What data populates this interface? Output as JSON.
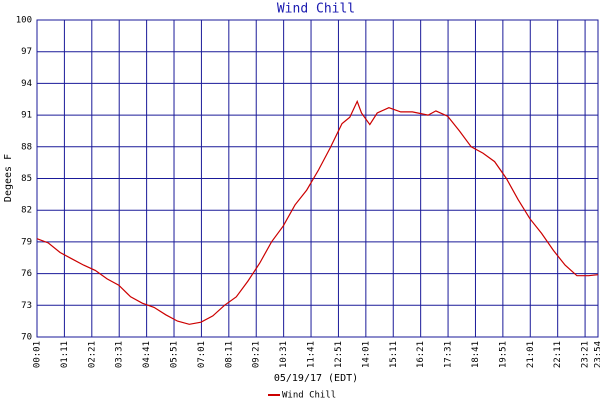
{
  "chart_data": {
    "type": "line",
    "title": "Wind Chill",
    "xlabel": "05/19/17 (EDT)",
    "ylabel": "Degees F",
    "x": [
      "00:01",
      "00:30",
      "01:00",
      "01:30",
      "02:00",
      "02:30",
      "03:00",
      "03:30",
      "04:00",
      "04:30",
      "05:00",
      "05:30",
      "06:00",
      "06:30",
      "07:00",
      "07:30",
      "08:00",
      "08:30",
      "09:00",
      "09:30",
      "10:00",
      "10:30",
      "11:00",
      "11:30",
      "12:00",
      "12:30",
      "13:00",
      "13:20",
      "13:39",
      "13:50",
      "14:11",
      "14:30",
      "15:00",
      "15:30",
      "16:00",
      "16:40",
      "17:00",
      "17:30",
      "18:00",
      "18:30",
      "19:00",
      "19:30",
      "20:00",
      "20:30",
      "21:00",
      "21:30",
      "22:00",
      "22:30",
      "23:00",
      "23:30",
      "23:54"
    ],
    "series": [
      {
        "name": "Wind Chill",
        "color": "#cc0000",
        "values": [
          79.3,
          78.9,
          78.0,
          77.4,
          76.8,
          76.3,
          75.5,
          74.9,
          73.8,
          73.2,
          72.8,
          72.1,
          71.5,
          71.2,
          71.4,
          72.0,
          73.0,
          73.8,
          75.3,
          77.0,
          79.0,
          80.5,
          82.5,
          83.9,
          85.8,
          87.9,
          90.2,
          90.8,
          92.3,
          91.2,
          90.1,
          91.2,
          91.7,
          91.3,
          91.3,
          91.0,
          91.4,
          90.9,
          89.5,
          88.0,
          87.4,
          86.6,
          85.0,
          83.0,
          81.2,
          79.8,
          78.2,
          76.8,
          75.8,
          75.8,
          75.9
        ]
      }
    ],
    "xlim": [
      "00:01",
      "23:54"
    ],
    "xticks": [
      "00:01",
      "01:11",
      "02:21",
      "03:31",
      "04:41",
      "05:51",
      "07:01",
      "08:11",
      "09:21",
      "10:31",
      "11:41",
      "12:51",
      "14:01",
      "15:11",
      "16:21",
      "17:31",
      "18:41",
      "19:51",
      "21:01",
      "22:11",
      "23:21",
      "23:54"
    ],
    "ylim": [
      70,
      100
    ],
    "yticks": [
      70,
      73,
      76,
      79,
      82,
      85,
      88,
      91,
      94,
      97,
      100
    ],
    "grid": true,
    "grid_color": "#1a1a99"
  }
}
